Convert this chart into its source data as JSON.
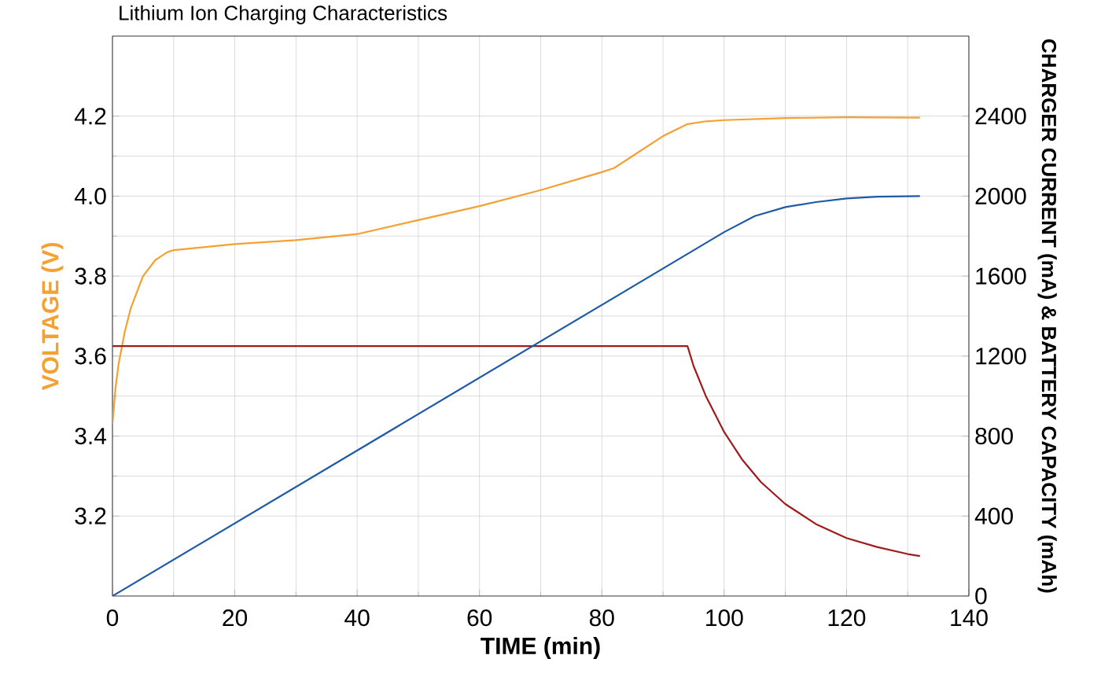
{
  "chart_data": {
    "type": "line",
    "title": "Lithium Ion Charging Characteristics",
    "xlabel": "TIME (min)",
    "ylabel": "VOLTAGE (V)",
    "y2label": "CHARGER CURRENT (mA) & BATTERY CAPACITY (mAh)",
    "xlim": [
      0,
      140
    ],
    "xticks": [
      0,
      20,
      40,
      60,
      80,
      100,
      120,
      140
    ],
    "ylim": [
      3.0,
      4.4
    ],
    "yticks": [
      3.2,
      3.4,
      3.6,
      3.8,
      {
        "value": 4.0,
        "label": "4.0"
      },
      4.2
    ],
    "y2lim": [
      0,
      2800
    ],
    "y2ticks": [
      0,
      400,
      800,
      1200,
      1600,
      2000,
      2400
    ],
    "grid": true,
    "series": [
      {
        "color": "#f5a033",
        "x": [
          0,
          0.5,
          1,
          2,
          3,
          4,
          5,
          6,
          7,
          8,
          9,
          10,
          20,
          30,
          40,
          50,
          60,
          70,
          80,
          82,
          85,
          90,
          94,
          97,
          100,
          110,
          120,
          132
        ],
        "values": [
          3.43,
          3.52,
          3.58,
          3.66,
          3.72,
          3.76,
          3.8,
          3.82,
          3.84,
          3.85,
          3.86,
          3.865,
          3.88,
          3.89,
          3.905,
          3.94,
          3.975,
          4.015,
          4.06,
          4.07,
          4.1,
          4.15,
          4.18,
          4.187,
          4.19,
          4.195,
          4.197,
          4.196
        ]
      },
      {
        "color": "#a01c1c",
        "axis": "y2",
        "x": [
          0,
          94,
          95,
          97,
          100,
          103,
          106,
          110,
          115,
          120,
          125,
          130,
          132
        ],
        "values": [
          1250,
          1250,
          1150,
          1000,
          820,
          680,
          570,
          460,
          360,
          290,
          245,
          210,
          200
        ]
      },
      {
        "color": "#1f5aa6",
        "axis": "y2",
        "x": [
          0,
          100,
          105,
          110,
          115,
          120,
          125,
          132
        ],
        "values": [
          0,
          1820,
          1900,
          1945,
          1970,
          1988,
          1997,
          2000
        ]
      }
    ]
  }
}
